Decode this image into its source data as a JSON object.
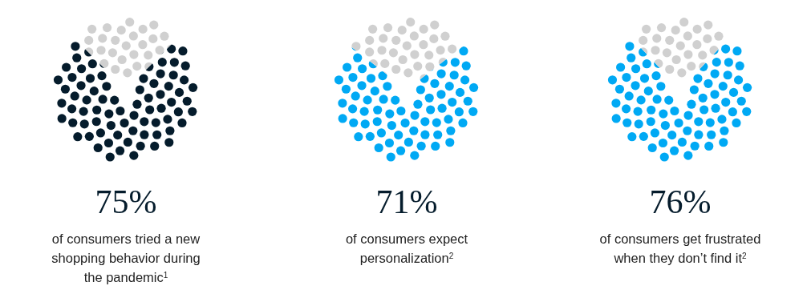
{
  "chart_data": [
    {
      "type": "pie",
      "categories": [
        null,
        null
      ],
      "values": [
        75,
        25
      ],
      "colors": [
        "#051c2c",
        "#d0d0d0"
      ],
      "value_labels": [
        "75%",
        null
      ],
      "subtitle": "of consumers tried a new\nshopping behavior during\nthe pandemic$^{1}$"
    },
    {
      "type": "pie",
      "categories": [
        null,
        null
      ],
      "values": [
        71,
        29
      ],
      "colors": [
        "#00a9f4",
        "#d0d0d0"
      ],
      "value_labels": [
        "71%",
        null
      ],
      "subtitle": "of consumers expect\npersonalization$^{2}$"
    },
    {
      "type": "pie",
      "categories": [
        null,
        null
      ],
      "values": [
        76,
        24
      ],
      "colors": [
        "#00a9f4",
        "#d0d0d0"
      ],
      "value_labels": [
        "76%",
        null
      ],
      "subtitle": "of consumers get frustrated\nwhen they don’t find it$^{2}$"
    }
  ]
}
